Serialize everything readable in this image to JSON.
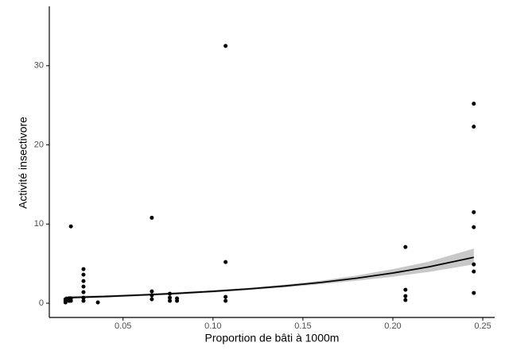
{
  "chart_data": {
    "type": "scatter",
    "x_label": "Proportion de bâti à 1000m",
    "y_label": "Activité insectivore",
    "xlim": [
      0.009,
      0.2566
    ],
    "ylim": [
      -1.8,
      37.5
    ],
    "xticks": [
      0.05,
      {
        "value": 0.1,
        "label": "0.10"
      },
      0.15,
      {
        "value": 0.2,
        "label": "0.20"
      },
      0.25
    ],
    "yticks": [
      0,
      10,
      20,
      30
    ],
    "series": [
      {
        "type": "scatter",
        "color": "#000000",
        "x": [
          0.018,
          0.018,
          0.018,
          0.02,
          0.02,
          0.021,
          0.021,
          0.021,
          0.028,
          0.028,
          0.028,
          0.028,
          0.028,
          0.028,
          0.028,
          0.036,
          0.066,
          0.066,
          0.066,
          0.066,
          0.076,
          0.076,
          0.076,
          0.08,
          0.08,
          0.107,
          0.107,
          0.107,
          0.107,
          0.207,
          0.207,
          0.207,
          0.207,
          0.245,
          0.245,
          0.245,
          0.245,
          0.245,
          0.245,
          0.245
        ],
        "values": [
          0.1,
          0.3,
          0.5,
          0.3,
          0.6,
          9.7,
          0.6,
          0.3,
          4.3,
          3.6,
          2.8,
          2.1,
          1.4,
          0.7,
          0.3,
          0.1,
          10.8,
          1.5,
          1.0,
          0.5,
          1.2,
          0.7,
          0.3,
          0.6,
          0.3,
          32.5,
          5.2,
          0.8,
          0.3,
          7.1,
          1.7,
          0.9,
          0.4,
          25.2,
          22.3,
          11.5,
          9.6,
          4.9,
          4.0,
          1.3
        ]
      },
      {
        "type": "line",
        "color": "#000000",
        "band_color": "#c8c8c8",
        "x": [
          0.018,
          0.04,
          0.06,
          0.08,
          0.1,
          0.12,
          0.14,
          0.16,
          0.18,
          0.2,
          0.22,
          0.245
        ],
        "values": [
          0.7,
          0.85,
          1.03,
          1.24,
          1.5,
          1.81,
          2.18,
          2.62,
          3.16,
          3.81,
          4.59,
          5.8
        ],
        "lower": [
          0.5,
          0.7,
          0.9,
          1.1,
          1.35,
          1.65,
          2.0,
          2.4,
          2.85,
          3.35,
          3.95,
          4.9
        ],
        "upper": [
          0.9,
          1.0,
          1.2,
          1.4,
          1.65,
          1.95,
          2.35,
          2.85,
          3.5,
          4.3,
          5.25,
          6.9
        ]
      }
    ]
  }
}
